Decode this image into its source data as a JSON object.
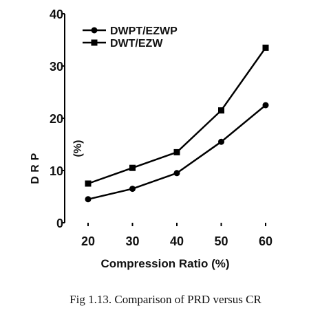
{
  "caption": "Fig 1.13. Comparison of PRD versus CR",
  "chart_data": {
    "type": "line",
    "x": [
      20,
      30,
      40,
      50,
      60
    ],
    "xlabel": "Compression Ratio (%)",
    "ylabel_letters": [
      "P",
      "R",
      "D"
    ],
    "ylabel_unit": "(%)",
    "ylim": [
      0,
      40
    ],
    "yticks": [
      0,
      10,
      20,
      30,
      40
    ],
    "xticks": [
      20,
      30,
      40,
      50,
      60
    ],
    "legend_position": "top-left",
    "series": [
      {
        "name": "DWPT/EZWP",
        "marker": "circle",
        "color": "#000000",
        "values": [
          4.5,
          6.5,
          9.5,
          15.5,
          22.5
        ]
      },
      {
        "name": "DWT/EZW",
        "marker": "square",
        "color": "#000000",
        "values": [
          7.5,
          10.5,
          13.5,
          21.5,
          33.5
        ]
      }
    ]
  }
}
